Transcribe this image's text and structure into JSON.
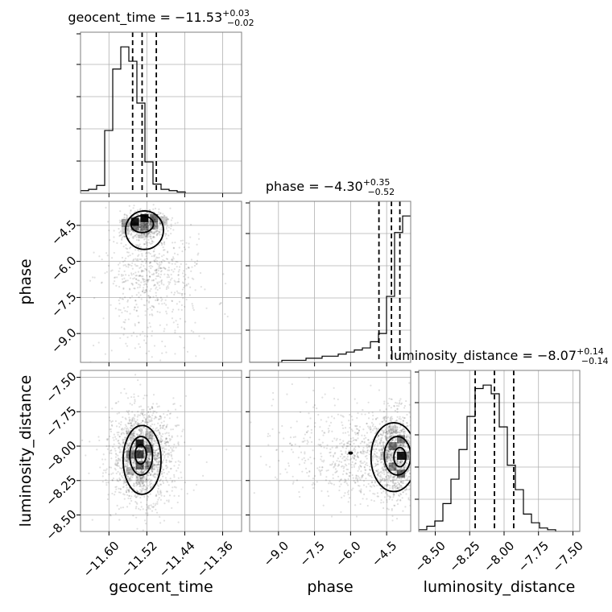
{
  "chart_data": {
    "type": "corner",
    "grid": true,
    "parameters": [
      {
        "name": "geocent_time",
        "title": {
          "prefix": "geocent_time = ",
          "median": "−11.53",
          "plus": "+0.03",
          "minus": "−0.02"
        },
        "range": [
          -11.66,
          -11.32
        ],
        "ticks": [
          -11.6,
          -11.52,
          -11.44,
          -11.36
        ],
        "tick_labels": [
          "−11.60",
          "−11.52",
          "−11.44",
          "−11.36"
        ],
        "quantiles": [
          -11.55,
          -11.53,
          -11.5
        ],
        "histogram": {
          "edges_start": -11.66,
          "bin_width": 0.017,
          "counts": [
            2,
            3,
            6,
            48,
            95,
            112,
            101,
            69,
            24,
            7,
            3,
            2,
            1,
            0,
            0,
            0,
            0,
            0,
            0,
            0
          ]
        }
      },
      {
        "name": "phase",
        "title": {
          "prefix": "phase = ",
          "median": "−4.30",
          "plus": "+0.35",
          "minus": "−0.52"
        },
        "range": [
          -10.2,
          -3.5
        ],
        "ticks": [
          -9.0,
          -7.5,
          -6.0,
          -4.5
        ],
        "tick_labels": [
          "−9.0",
          "−7.5",
          "−6.0",
          "−4.5"
        ],
        "quantiles": [
          -4.82,
          -4.3,
          -3.95
        ],
        "histogram": {
          "edges_start": -10.2,
          "bin_width": 0.335,
          "counts": [
            0,
            0,
            0,
            0,
            1,
            1,
            1,
            2,
            2,
            3,
            3,
            4,
            5,
            6,
            7,
            10,
            14,
            32,
            63,
            71
          ]
        }
      },
      {
        "name": "luminosity_distance",
        "title": {
          "prefix": "luminosity_distance = ",
          "median": "−8.07",
          "plus": "+0.14",
          "minus": "−0.14"
        },
        "range": [
          -8.62,
          -7.45
        ],
        "ticks": [
          -8.5,
          -8.25,
          -8.0,
          -7.75,
          -7.5
        ],
        "tick_labels": [
          "−8.50",
          "−8.25",
          "−8.00",
          "−7.75",
          "−7.50"
        ],
        "quantiles": [
          -8.21,
          -8.07,
          -7.93
        ],
        "histogram": {
          "edges_start": -8.62,
          "bin_width": 0.0585,
          "counts": [
            1,
            3,
            6,
            16,
            30,
            47,
            66,
            82,
            84,
            79,
            60,
            38,
            24,
            10,
            5,
            2,
            1,
            0,
            0,
            0
          ]
        }
      }
    ],
    "pairs": [
      {
        "x": "geocent_time",
        "y": "phase",
        "scatter_centers": [
          {
            "x": -11.525,
            "y": -4.5,
            "sx": 0.025,
            "sy": 0.35,
            "n": 520
          },
          {
            "x": -11.515,
            "y": -6.3,
            "sx": 0.045,
            "sy": 0.9,
            "n": 420
          },
          {
            "x": -11.49,
            "y": -7.4,
            "sx": 0.06,
            "sy": 1.2,
            "n": 160
          },
          {
            "x": -11.54,
            "y": -8.8,
            "sx": 0.07,
            "sy": 0.9,
            "n": 60
          }
        ],
        "density_cells": [
          {
            "x": -11.545,
            "y": -4.35,
            "level": 0.9
          },
          {
            "x": -11.525,
            "y": -4.2,
            "level": 0.95
          },
          {
            "x": -11.505,
            "y": -4.2,
            "level": 0.55
          },
          {
            "x": -11.545,
            "y": -4.55,
            "level": 0.5
          },
          {
            "x": -11.525,
            "y": -4.55,
            "level": 0.45
          },
          {
            "x": -11.565,
            "y": -4.4,
            "level": 0.35
          },
          {
            "x": -11.505,
            "y": -4.5,
            "level": 0.3
          },
          {
            "x": -11.565,
            "y": -4.7,
            "level": 0.18
          },
          {
            "x": -11.485,
            "y": -4.3,
            "level": 0.2
          },
          {
            "x": -11.525,
            "y": -4.85,
            "level": 0.15
          }
        ],
        "contours": [
          {
            "cx": -11.53,
            "cy": -4.45,
            "rx": 0.024,
            "ry": 0.35
          },
          {
            "cx": -11.525,
            "cy": -4.7,
            "rx": 0.04,
            "ry": 0.8
          }
        ]
      },
      {
        "x": "geocent_time",
        "y": "luminosity_distance",
        "scatter_centers": [
          {
            "x": -11.53,
            "y": -8.07,
            "sx": 0.03,
            "sy": 0.16,
            "n": 1500
          },
          {
            "x": -11.53,
            "y": -8.1,
            "sx": 0.05,
            "sy": 0.22,
            "n": 250
          }
        ],
        "density_cells": [
          {
            "x": -11.535,
            "y": -7.98,
            "level": 0.85
          },
          {
            "x": -11.535,
            "y": -8.06,
            "level": 0.75
          },
          {
            "x": -11.535,
            "y": -8.14,
            "level": 0.55
          },
          {
            "x": -11.515,
            "y": -8.02,
            "level": 0.5
          },
          {
            "x": -11.555,
            "y": -8.06,
            "level": 0.45
          },
          {
            "x": -11.515,
            "y": -8.14,
            "level": 0.35
          },
          {
            "x": -11.555,
            "y": -8.18,
            "level": 0.25
          },
          {
            "x": -11.515,
            "y": -7.92,
            "level": 0.2
          },
          {
            "x": -11.535,
            "y": -8.24,
            "level": 0.15
          },
          {
            "x": -11.555,
            "y": -7.92,
            "level": 0.12
          }
        ],
        "contours": [
          {
            "cx": -11.533,
            "cy": -8.06,
            "rx": 0.012,
            "ry": 0.07
          },
          {
            "cx": -11.532,
            "cy": -8.07,
            "rx": 0.024,
            "ry": 0.14
          },
          {
            "cx": -11.53,
            "cy": -8.1,
            "rx": 0.04,
            "ry": 0.25
          }
        ]
      },
      {
        "x": "phase",
        "y": "luminosity_distance",
        "scatter_centers": [
          {
            "x": -4.1,
            "y": -8.07,
            "sx": 0.45,
            "sy": 0.16,
            "n": 1100
          },
          {
            "x": -5.6,
            "y": -8.07,
            "sx": 0.9,
            "sy": 0.16,
            "n": 500
          },
          {
            "x": -7.6,
            "y": -8.0,
            "sx": 1.1,
            "sy": 0.2,
            "n": 150
          }
        ],
        "density_cells": [
          {
            "x": -3.9,
            "y": -8.07,
            "level": 0.9
          },
          {
            "x": -3.9,
            "y": -8.2,
            "level": 0.55
          },
          {
            "x": -4.25,
            "y": -8.0,
            "level": 0.5
          },
          {
            "x": -3.9,
            "y": -7.95,
            "level": 0.45
          },
          {
            "x": -4.25,
            "y": -8.15,
            "level": 0.4
          },
          {
            "x": -3.6,
            "y": -8.07,
            "level": 0.35
          },
          {
            "x": -4.6,
            "y": -8.07,
            "level": 0.2
          },
          {
            "x": -4.25,
            "y": -7.88,
            "level": 0.15
          }
        ],
        "contours": [
          {
            "cx": -3.95,
            "cy": -8.08,
            "rx": 0.25,
            "ry": 0.07
          },
          {
            "cx": -4.05,
            "cy": -8.07,
            "rx": 0.55,
            "ry": 0.14
          },
          {
            "cx": -4.2,
            "cy": -8.08,
            "rx": 0.95,
            "ry": 0.25
          }
        ],
        "markers": [
          {
            "x": -6.0,
            "y": -8.05
          }
        ]
      }
    ],
    "colors": {
      "line": "#000000",
      "scatter": "#000000",
      "grid": "#b0b0b0",
      "spine": "#7f7f7f"
    }
  }
}
